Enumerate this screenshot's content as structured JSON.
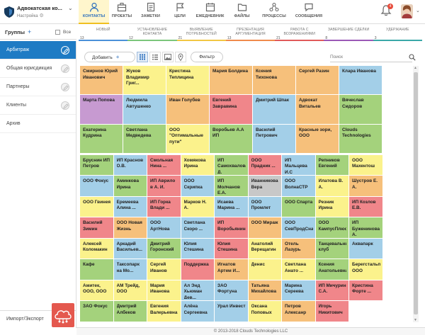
{
  "app": {
    "company": "Адвокатская ко...",
    "settings_label": "Настройка",
    "copyright": "© 2013-2018 Clouds Technologies LLC",
    "bell_badge": "4"
  },
  "nav": [
    {
      "label": "КОНТАКТЫ",
      "icon": "person-icon",
      "active": true
    },
    {
      "label": "ПРОЕКТЫ",
      "icon": "briefcase-icon",
      "active": false
    },
    {
      "label": "ЗАМЕТКИ",
      "icon": "notes-icon",
      "active": false
    },
    {
      "label": "ЦЕЛИ",
      "icon": "flag-icon",
      "active": false
    },
    {
      "label": "ЕЖЕДНЕВНИК",
      "icon": "calendar-icon",
      "active": false
    },
    {
      "label": "ФАЙЛЫ",
      "icon": "folder-icon",
      "active": false
    },
    {
      "label": "ПРОЦЕССЫ",
      "icon": "processes-icon",
      "active": false
    },
    {
      "label": "СООБЩЕНИЯ",
      "icon": "chat-icon",
      "active": false
    }
  ],
  "groups": {
    "label": "Группы",
    "all_label": "Все",
    "items": [
      {
        "label": "Арбитраж",
        "active": true
      },
      {
        "label": "Общая юрисдикция",
        "active": false
      },
      {
        "label": "Партнеры",
        "active": false
      },
      {
        "label": "Клиенты",
        "active": false
      },
      {
        "label": "Архив",
        "active": false
      }
    ],
    "import_label": "Импорт/Экспорт"
  },
  "stages": [
    {
      "label": "НОВЫЙ",
      "count": "13",
      "color": "#4a90d9"
    },
    {
      "label": "УСТАНОВЛЕНИЕ КОНТАКТА",
      "count": "12",
      "color": "#7bc67b"
    },
    {
      "label": "ВЫЯВЛЕНИЕ ПОТРЕБНОСТЕЙ",
      "count": "21",
      "color": "#f2c744"
    },
    {
      "label": "ПРЕЗЕНТАЦИЯ АРГУМЕНТАЦИЯ",
      "count": "13",
      "color": "#f08a4b"
    },
    {
      "label": "РАБОТА С ВОЗРАЖЕНИЯМИ",
      "count": "21",
      "color": "#e05a5a"
    },
    {
      "label": "ЗАВЕРШЕНИЕ СДЕЛКИ",
      "count": "8",
      "color": "#9b59b6"
    },
    {
      "label": "УДЕРЖАНИЕ",
      "count": "3",
      "color": "#3aa8a8"
    }
  ],
  "toolbar": {
    "add_label": "Добавить",
    "filter_label": "Фильтр",
    "search_placeholder": "Поиск"
  },
  "colors": {
    "yellow": "#fbf28c",
    "orange": "#f6c07b",
    "green": "#a4d27c",
    "blue": "#a3cfe8",
    "red": "#f0868a",
    "purple": "#c79ad1",
    "grey": "#c8c8c8",
    "teal": "#8ed1c5",
    "accent": "#1e7bc4"
  },
  "contacts_large": [
    {
      "name": "Смирнов Юрий Иванович",
      "color": "orange"
    },
    {
      "name": "Жуков Владимир Григ...",
      "color": "yellow"
    },
    {
      "name": "Кристина Теплицина",
      "color": "yellow"
    },
    {
      "name": "Мария Болдина",
      "color": "orange"
    },
    {
      "name": "Ксения Тихонова",
      "color": "orange"
    },
    {
      "name": "Сергей Разин",
      "color": "orange"
    },
    {
      "name": "Клара Иванова",
      "color": "blue"
    },
    {
      "name": "Марта Попова",
      "color": "purple"
    },
    {
      "name": "Людмила Автушенко",
      "color": "blue"
    },
    {
      "name": "Иван Голубев",
      "color": "orange"
    },
    {
      "name": "Евгений Завравина",
      "color": "red"
    },
    {
      "name": "Дмитрий Шпак",
      "color": "blue"
    },
    {
      "name": "Адвокат Витальев",
      "color": "orange"
    },
    {
      "name": "Вячеслав Сидоров",
      "color": "green"
    },
    {
      "name": "Екатерина Кудрина",
      "color": "green"
    },
    {
      "name": "Светлана Медведева",
      "color": "green"
    },
    {
      "name": "ООО \"Оптимальные пути\"",
      "color": "yellow"
    },
    {
      "name": "Воробьев А.А ИП",
      "color": "green"
    },
    {
      "name": "Василий Петрович",
      "color": "blue"
    },
    {
      "name": "Красные зори, ООО",
      "color": "orange"
    },
    {
      "name": "Clouds Technologies",
      "color": "green"
    }
  ],
  "contacts_small": [
    {
      "name": "Бруснин ИП Петров",
      "color": "green"
    },
    {
      "name": "ИП Краснов О.В.",
      "color": "blue"
    },
    {
      "name": "Смольная Нина ...",
      "color": "red"
    },
    {
      "name": "Хомякова Ирина",
      "color": "yellow"
    },
    {
      "name": "ИП Самохвалова Д.",
      "color": "green"
    },
    {
      "name": "ООО Прадник ...",
      "color": "red"
    },
    {
      "name": "ИП Мальцева И.С",
      "color": "blue"
    },
    {
      "name": "Репников Евгений",
      "color": "green"
    },
    {
      "name": "ООО Махентош",
      "color": "yellow"
    },
    {
      "name": "ООО Фокус",
      "color": "blue"
    },
    {
      "name": "Аминкова Ирина",
      "color": "green"
    },
    {
      "name": "ИП Аврило в А. И.",
      "color": "red"
    },
    {
      "name": "ООО Скрипка",
      "color": "blue"
    },
    {
      "name": "ИП Молчанов Е.А.",
      "color": "green"
    },
    {
      "name": "Иванникова Вера",
      "color": "grey"
    },
    {
      "name": "ООО ВолнаСТР",
      "color": "blue"
    },
    {
      "name": "Илатова В. А.",
      "color": "yellow"
    },
    {
      "name": "Шустров Е. А.",
      "color": "orange"
    },
    {
      "name": "ООО Гвинея",
      "color": "yellow"
    },
    {
      "name": "Еремеева Алина ...",
      "color": "blue"
    },
    {
      "name": "ИП Горка Влади ...",
      "color": "red"
    },
    {
      "name": "Марков Н. А.",
      "color": "yellow"
    },
    {
      "name": "Исаева Марина ...",
      "color": "blue"
    },
    {
      "name": "ООО Промлет",
      "color": "blue"
    },
    {
      "name": "ООО Спарта",
      "color": "green"
    },
    {
      "name": "Резник Ирина",
      "color": "yellow"
    },
    {
      "name": "ИП Козлов Е.В.",
      "color": "red"
    },
    {
      "name": "Василий Зимин",
      "color": "red"
    },
    {
      "name": "ООО Новая Жизнь",
      "color": "orange"
    },
    {
      "name": "ООО АртНова",
      "color": "blue"
    },
    {
      "name": "Светлана Скоро ...",
      "color": "blue"
    },
    {
      "name": "ИП Воробьянино...",
      "color": "red"
    },
    {
      "name": "ООО Мираж",
      "color": "orange"
    },
    {
      "name": "ООО СевПродСнаб",
      "color": "blue"
    },
    {
      "name": "ООО КампусПлюс",
      "color": "green"
    },
    {
      "name": "ИП Буженинова А.",
      "color": "green"
    },
    {
      "name": "Алексей Коломакин",
      "color": "yellow"
    },
    {
      "name": "Аркадий Васильев...",
      "color": "blue"
    },
    {
      "name": "Дмитрий Горонский",
      "color": "green"
    },
    {
      "name": "Юлия Стешина",
      "color": "blue"
    },
    {
      "name": "Юлия Стешина",
      "color": "red"
    },
    {
      "name": "Анатолий Верещагин",
      "color": "yellow"
    },
    {
      "name": "Отель Лазурь",
      "color": "orange"
    },
    {
      "name": "Танцевальный клуб",
      "color": "green"
    },
    {
      "name": "Аквапарк",
      "color": "blue"
    },
    {
      "name": "Кафе",
      "color": "green"
    },
    {
      "name": "Таксопарк на Мо...",
      "color": "blue"
    },
    {
      "name": "Сергей Иванов",
      "color": "yellow"
    },
    {
      "name": "Поддержка",
      "color": "red"
    },
    {
      "name": "Игнатов Артем И...",
      "color": "orange"
    },
    {
      "name": "Денис",
      "color": "yellow"
    },
    {
      "name": "Светлана Анато ...",
      "color": "yellow"
    },
    {
      "name": "Ксения Анатольевна",
      "color": "green"
    },
    {
      "name": "Берегстальпо, ООО",
      "color": "yellow"
    },
    {
      "name": "Амитек, ООО, ООО",
      "color": "yellow"
    },
    {
      "name": "АМ Трейд, ООО",
      "color": "yellow"
    },
    {
      "name": "Мария Иванова",
      "color": "yellow"
    },
    {
      "name": "Ал Энд Хьюман Дев...",
      "color": "blue"
    },
    {
      "name": "ЗАО Фортуна",
      "color": "blue"
    },
    {
      "name": "Татьяна Михайлова",
      "color": "orange"
    },
    {
      "name": "Марина Сереева",
      "color": "blue"
    },
    {
      "name": "ИП Мичурин С.А.",
      "color": "red"
    },
    {
      "name": "Кристина Форте ...",
      "color": "red"
    },
    {
      "name": "ЗАО Фокус",
      "color": "green"
    },
    {
      "name": "Дмитрий Албеков",
      "color": "green"
    },
    {
      "name": "Евгения Валерьевна",
      "color": "yellow"
    },
    {
      "name": "Алёна Сергеевна",
      "color": "blue"
    },
    {
      "name": "Урал Инвест",
      "color": "blue"
    },
    {
      "name": "Оксана Поповых",
      "color": "yellow"
    },
    {
      "name": "Петров Алексанр",
      "color": "orange"
    },
    {
      "name": "Игорь Никитович",
      "color": "red"
    }
  ]
}
